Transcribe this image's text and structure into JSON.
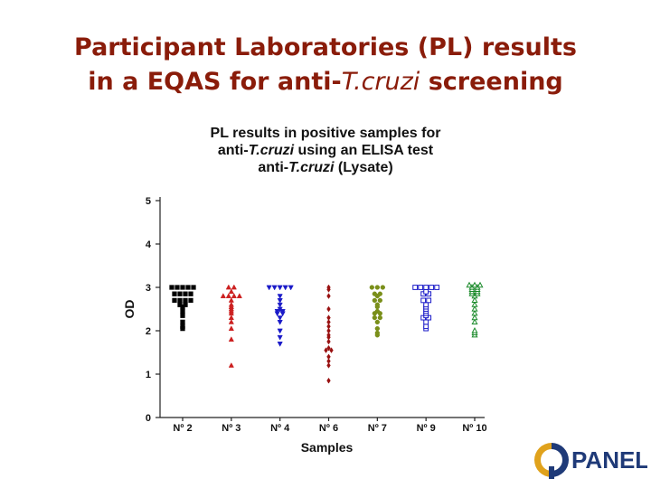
{
  "slide": {
    "title_line1": "Participant Laboratories (PL) results",
    "title_line2_prefix": "in a EQAS for anti-",
    "title_line2_italic": "T.cruzi",
    "title_line2_suffix": " screening"
  },
  "chart_data": {
    "type": "scatter",
    "title": {
      "line1": "PL results in  positive samples for",
      "line2_prefix": "anti-",
      "line2_italic": "T.cruzi",
      "line2_suffix": "  using an ELISA test",
      "line3_prefix": "anti-",
      "line3_italic": "T.cruzi",
      "line3_suffix": " (Lysate)"
    },
    "xlabel": "Samples",
    "ylabel": "OD",
    "ylim": [
      0,
      5
    ],
    "yticks": [
      0,
      1,
      2,
      3,
      4,
      5
    ],
    "grid": false,
    "categories": [
      "Nº 2",
      "Nº 3",
      "Nº 4",
      "Nº 6",
      "Nº 7",
      "Nº 9",
      "Nº 10"
    ],
    "series": [
      {
        "category": "Nº 2",
        "marker": "square-filled",
        "color": "#000000",
        "values": [
          3.0,
          3.0,
          3.0,
          3.0,
          3.0,
          2.85,
          2.85,
          2.85,
          2.85,
          2.7,
          2.7,
          2.7,
          2.7,
          2.6,
          2.6,
          2.55,
          2.45,
          2.35,
          2.2,
          2.1,
          2.05
        ]
      },
      {
        "category": "Nº 3",
        "marker": "triangle-up-filled",
        "color": "#cc2020",
        "values": [
          3.0,
          3.0,
          2.9,
          2.8,
          2.8,
          2.8,
          2.8,
          2.7,
          2.6,
          2.55,
          2.5,
          2.45,
          2.4,
          2.3,
          2.2,
          2.05,
          1.8,
          1.2
        ]
      },
      {
        "category": "Nº 4",
        "marker": "triangle-down-filled",
        "color": "#1a1ac8",
        "values": [
          3.0,
          3.0,
          3.0,
          3.0,
          3.0,
          2.8,
          2.7,
          2.6,
          2.5,
          2.45,
          2.45,
          2.4,
          2.4,
          2.3,
          2.2,
          2.0,
          1.85,
          1.7
        ]
      },
      {
        "category": "Nº 6",
        "marker": "diamond-filled",
        "color": "#991111",
        "values": [
          3.0,
          2.95,
          2.8,
          2.5,
          2.3,
          2.2,
          2.1,
          2.0,
          1.9,
          1.85,
          1.75,
          1.6,
          1.55,
          1.55,
          1.4,
          1.3,
          1.2,
          0.85
        ]
      },
      {
        "category": "Nº 7",
        "marker": "circle-filled",
        "color": "#7a8f1a",
        "values": [
          3.0,
          3.0,
          3.0,
          2.85,
          2.85,
          2.8,
          2.7,
          2.7,
          2.6,
          2.55,
          2.45,
          2.4,
          2.4,
          2.3,
          2.3,
          2.2,
          2.05,
          1.95,
          1.9
        ]
      },
      {
        "category": "Nº 9",
        "marker": "square-open",
        "color": "#1a1ac8",
        "values": [
          3.0,
          3.0,
          3.0,
          3.0,
          3.0,
          2.9,
          2.85,
          2.85,
          2.7,
          2.7,
          2.6,
          2.55,
          2.5,
          2.45,
          2.4,
          2.35,
          2.3,
          2.3,
          2.2,
          2.1,
          2.05
        ]
      },
      {
        "category": "Nº 10",
        "marker": "triangle-up-open",
        "color": "#1a8a2a",
        "values": [
          3.05,
          3.05,
          3.05,
          3.0,
          3.0,
          2.95,
          2.95,
          2.9,
          2.9,
          2.85,
          2.85,
          2.8,
          2.7,
          2.6,
          2.5,
          2.4,
          2.3,
          2.2,
          2.0,
          1.95,
          1.9
        ]
      }
    ]
  },
  "logo": {
    "text": "PANEL",
    "tagline": "",
    "colors": {
      "navy": "#1f3a78",
      "gold": "#e0a21c"
    }
  }
}
